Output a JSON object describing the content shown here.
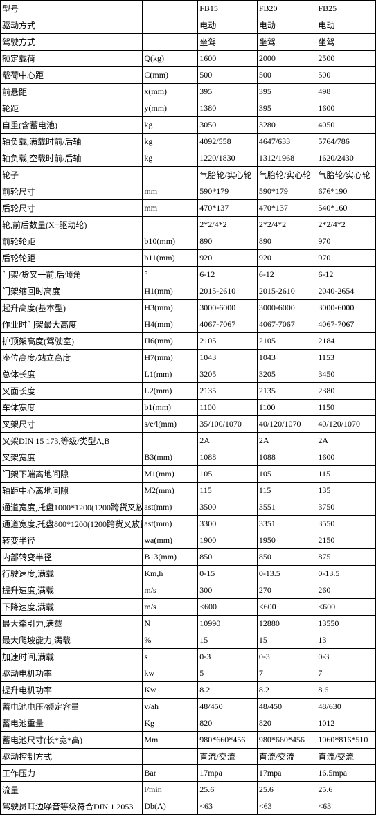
{
  "table": {
    "background_color": "#ffffff",
    "border_color": "#000000",
    "text_color": "#000000",
    "font_family": "SimSun",
    "font_size": 12,
    "rows": [
      [
        "型号",
        "",
        "FB15",
        "FB20",
        "FB25"
      ],
      [
        "驱动方式",
        "",
        "电动",
        "电动",
        "电动"
      ],
      [
        "驾驶方式",
        "",
        "坐驾",
        "坐驾",
        "坐驾"
      ],
      [
        "额定载荷",
        "Q(kg)",
        "1600",
        "2000",
        "2500"
      ],
      [
        "载荷中心距",
        "C(mm)",
        "500",
        "500",
        "500"
      ],
      [
        "前悬距",
        "x(mm)",
        "395",
        "395",
        "498"
      ],
      [
        "轮距",
        "y(mm)",
        "1380",
        "395",
        "1600"
      ],
      [
        "自重(含蓄电池)",
        "kg",
        "3050",
        "3280",
        "4050"
      ],
      [
        "轴负载,满载时前/后轴",
        "kg",
        "4092/558",
        "4647/633",
        "5764/786"
      ],
      [
        "轴负载,空载时前/后轴",
        "kg",
        "1220/1830",
        "1312/1968",
        "1620/2430"
      ],
      [
        "轮子",
        "",
        "气胎轮/实心轮",
        "气胎轮/实心轮",
        "气胎轮/实心轮"
      ],
      [
        "前轮尺寸",
        "mm",
        "590*179",
        "590*179",
        "676*190"
      ],
      [
        "后轮尺寸",
        "mm",
        "470*137",
        "470*137",
        "540*160"
      ],
      [
        "轮,前后数量(X=驱动轮)",
        "",
        "2*2/4*2",
        "2*2/4*2",
        "2*2/4*2"
      ],
      [
        "前轮轮距",
        "b10(mm)",
        "890",
        "890",
        "970"
      ],
      [
        "后轮轮距",
        "b11(mm)",
        "920",
        "920",
        "970"
      ],
      [
        "门架/货叉一前,后倾角",
        "°",
        "6-12",
        "6-12",
        "6-12"
      ],
      [
        "门架缩回时高度",
        "H1(mm)",
        "2015-2610",
        "2015-2610",
        "2040-2654"
      ],
      [
        "起升高度(基本型)",
        "H3(mm)",
        "3000-6000",
        "3000-6000",
        "3000-6000"
      ],
      [
        "作业时门架最大高度",
        "H4(mm)",
        "4067-7067",
        "4067-7067",
        "4067-7067"
      ],
      [
        "护顶架高度(驾驶室)",
        "H6(mm)",
        "2105",
        "2105",
        "2184"
      ],
      [
        "座位高度/站立高度",
        "H7(mm)",
        "1043",
        "1043",
        "1153"
      ],
      [
        "总体长度",
        "L1(mm)",
        "3205",
        "3205",
        "3450"
      ],
      [
        "叉面长度",
        "L2(mm)",
        "2135",
        "2135",
        "2380"
      ],
      [
        "车体宽度",
        "b1(mm)",
        "1100",
        "1100",
        "1150"
      ],
      [
        "叉架尺寸",
        "s/e/l(mm)",
        "35/100/1070",
        "40/120/1070",
        "40/120/1070"
      ],
      [
        "叉架DIN 15 173,等级/类型A,B",
        "",
        "2A",
        "2A",
        "2A"
      ],
      [
        "叉架宽度",
        "B3(mm)",
        "1088",
        "1088",
        "1600"
      ],
      [
        "门架下端离地间隙",
        "M1(mm)",
        "105",
        "105",
        "115"
      ],
      [
        "轴距中心离地间隙",
        "M2(mm)",
        "115",
        "115",
        "135"
      ],
      [
        "通道宽度,托盘1000*1200(1200跨货叉放置)",
        "ast(mm)",
        "3500",
        "3551",
        "3750"
      ],
      [
        "通道宽度,托盘800*1200(1200跨货叉放置)",
        "ast(mm)",
        "3300",
        "3351",
        "3550"
      ],
      [
        "转变半径",
        "wa(mm)",
        "1900",
        "1950",
        "2150"
      ],
      [
        "内部转变半径",
        "B13(mm)",
        "850",
        "850",
        "875"
      ],
      [
        "行驶速度,满载",
        "Km,h",
        "0-15",
        "0-13.5",
        "0-13.5"
      ],
      [
        "提升速度,满载",
        "m/s",
        "300",
        "270",
        "260"
      ],
      [
        "下降速度,满载",
        "m/s",
        "<600",
        "<600",
        "<600"
      ],
      [
        "最大牵引力,满载",
        "N",
        "10990",
        "12880",
        "13550"
      ],
      [
        "最大爬坡能力,满载",
        "%",
        "15",
        "15",
        "13"
      ],
      [
        "加速时间,满载",
        "s",
        "0-3",
        "0-3",
        "0-3"
      ],
      [
        "驱动电机功率",
        "kw",
        "5",
        "7",
        "7"
      ],
      [
        "提升电机功率",
        "Kw",
        "8.2",
        "8.2",
        "8.6"
      ],
      [
        "蓄电池电压/额定容量",
        "v/ah",
        "48/450",
        "48/450",
        "48/630"
      ],
      [
        "蓄电池重量",
        "Kg",
        "820",
        "820",
        "1012"
      ],
      [
        "蓄电池尺寸(长*宽*高)",
        "Mm",
        "980*660*456",
        "980*660*456",
        "1060*816*510"
      ],
      [
        "驱动控制方式",
        "",
        "直流/交流",
        "直流/交流",
        "直流/交流"
      ],
      [
        "工作压力",
        "Bar",
        "17mpa",
        "17mpa",
        "16.5mpa"
      ],
      [
        "流量",
        "l/min",
        "25.6",
        "25.6",
        "25.6"
      ],
      [
        "驾驶员耳边噪音等级符合DIN 1 2053",
        "Db(A)",
        "<63",
        "<63",
        "<63"
      ]
    ]
  }
}
